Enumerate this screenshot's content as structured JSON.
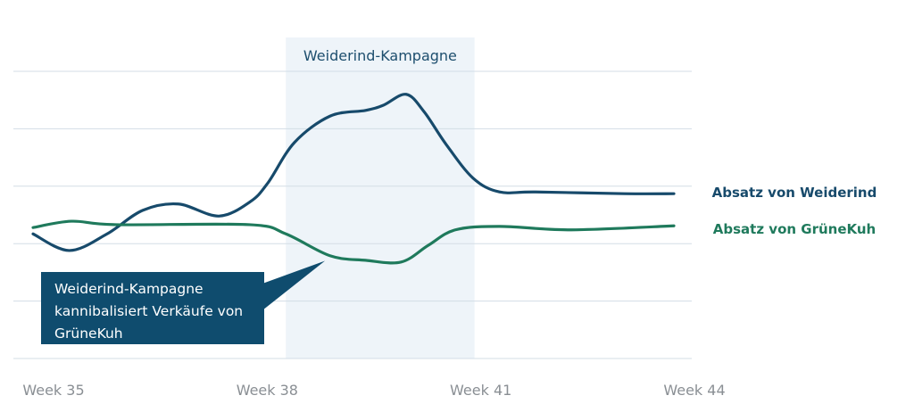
{
  "chart_data": {
    "type": "line",
    "title": "",
    "xlabel": "",
    "ylabel": "",
    "x_ticks": [
      "Week 35",
      "Week 38",
      "Week 41",
      "Week 44"
    ],
    "x_tick_values": [
      35,
      38,
      41,
      44
    ],
    "xlim": [
      35,
      44
    ],
    "ylim": [
      0,
      5
    ],
    "y_gridlines": [
      0,
      1,
      2,
      3,
      4,
      5
    ],
    "grid": true,
    "y_tick_labels_shown": false,
    "legend_placement": "right, at line ends",
    "shaded_region": {
      "label": "Weiderind-Kampagne",
      "x_range": [
        38.55,
        41.2
      ],
      "color": "#eef4f9"
    },
    "annotation": {
      "lines": [
        "Weiderind-Kampagne",
        "kannibalisiert Verkäufe von",
        "GrüneKuh"
      ],
      "color": "#0f4c6e",
      "points_to": {
        "x": 39.1,
        "y": 1.7
      }
    },
    "series": [
      {
        "name": "Absatz von Weiderind",
        "color": "#174a6b",
        "x": [
          35.0,
          35.51,
          36.04,
          36.54,
          37.04,
          37.61,
          38.05,
          38.3,
          38.67,
          39.17,
          39.67,
          39.92,
          40.24,
          40.49,
          40.8,
          41.18,
          41.55,
          42.06,
          43.31,
          44.0
        ],
        "y": [
          2.17,
          1.88,
          2.17,
          2.58,
          2.69,
          2.48,
          2.73,
          3.06,
          3.76,
          4.22,
          4.32,
          4.41,
          4.6,
          4.3,
          3.73,
          3.14,
          2.9,
          2.9,
          2.87,
          2.87
        ]
      },
      {
        "name": "Absatz von GrüneKuh",
        "color": "#1f7a5c",
        "x": [
          35.0,
          35.54,
          36.17,
          38.04,
          38.55,
          39.17,
          39.67,
          40.17,
          40.55,
          40.93,
          41.55,
          42.56,
          44.0
        ],
        "y": [
          2.28,
          2.39,
          2.33,
          2.33,
          2.17,
          1.79,
          1.71,
          1.68,
          1.97,
          2.24,
          2.3,
          2.24,
          2.31
        ]
      }
    ]
  }
}
